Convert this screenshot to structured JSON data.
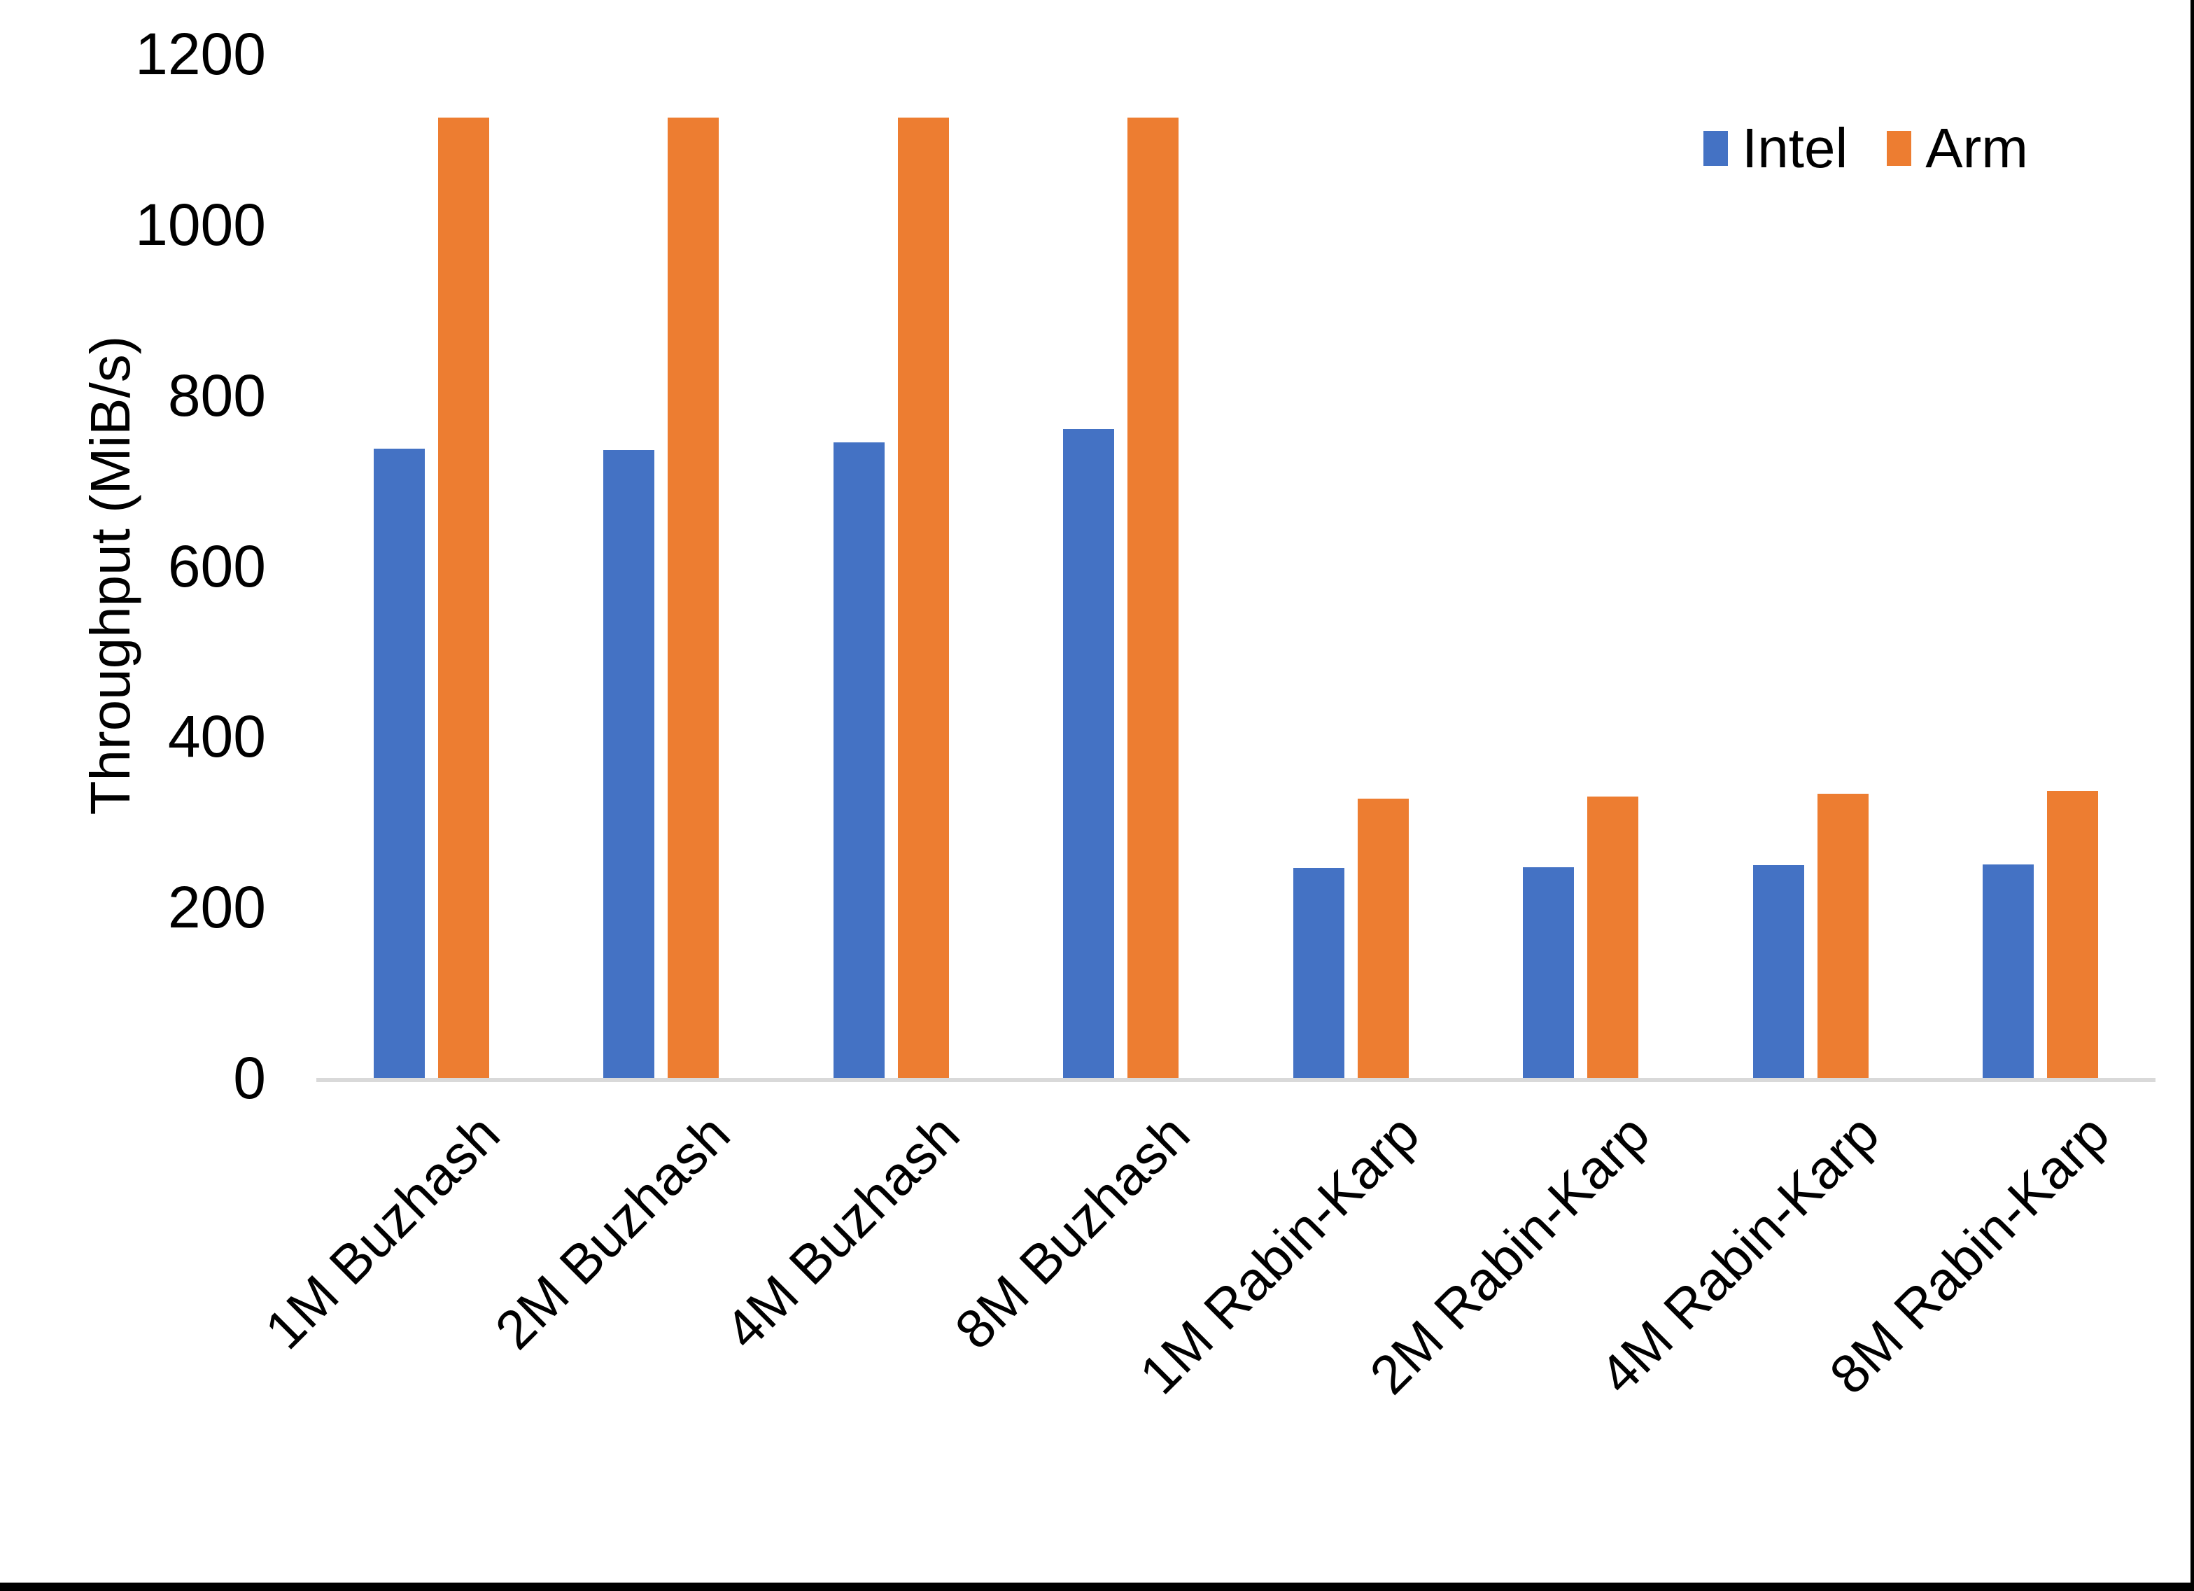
{
  "chart_data": {
    "type": "bar",
    "title": "",
    "xlabel": "",
    "ylabel": "Throughput (MiB/s)",
    "ylim": [
      0,
      1200
    ],
    "yticks": [
      0,
      200,
      400,
      600,
      800,
      1000,
      1200
    ],
    "grid": false,
    "legend_position": "top-right",
    "categories": [
      "1M Buzhash",
      "2M Buzhash",
      "4M Buzhash",
      "8M Buzhash",
      "1M Rabin-Karp",
      "2M Rabin-Karp",
      "4M Rabin-Karp",
      "8M Rabin-Karp"
    ],
    "series": [
      {
        "name": "Intel",
        "color": "#4472c4",
        "values": [
          737,
          736,
          745,
          760,
          246,
          247,
          249,
          250
        ]
      },
      {
        "name": "Arm",
        "color": "#ed7d31",
        "values": [
          1125,
          1125,
          1125,
          1125,
          327,
          330,
          333,
          336
        ]
      }
    ],
    "axis_line_color": "#d9d9d9"
  }
}
